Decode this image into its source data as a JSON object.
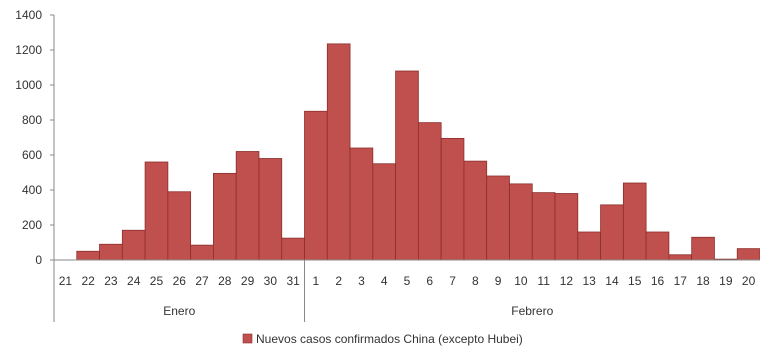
{
  "chart_data": {
    "type": "bar",
    "title": "",
    "xlabel": "",
    "ylabel": "",
    "ylim": [
      0,
      1400
    ],
    "yticks": [
      0,
      200,
      400,
      600,
      800,
      1000,
      1200,
      1400
    ],
    "grid": false,
    "legend_position": "bottom",
    "categories": [
      "21",
      "22",
      "23",
      "24",
      "25",
      "26",
      "27",
      "28",
      "29",
      "30",
      "31",
      "1",
      "2",
      "3",
      "4",
      "5",
      "6",
      "7",
      "8",
      "9",
      "10",
      "11",
      "12",
      "13",
      "14",
      "15",
      "16",
      "17",
      "18",
      "19",
      "20"
    ],
    "groups": [
      {
        "label": "Enero",
        "count": 11
      },
      {
        "label": "Febrero",
        "count": 20
      }
    ],
    "series": [
      {
        "name": "Nuevos casos confirmados China (excepto Hubei)",
        "color": "#c0504d",
        "values": [
          0,
          50,
          90,
          170,
          560,
          390,
          85,
          495,
          620,
          580,
          125,
          850,
          1235,
          640,
          550,
          1080,
          785,
          695,
          565,
          480,
          435,
          385,
          380,
          160,
          315,
          440,
          160,
          30,
          130,
          5,
          65
        ]
      }
    ]
  }
}
